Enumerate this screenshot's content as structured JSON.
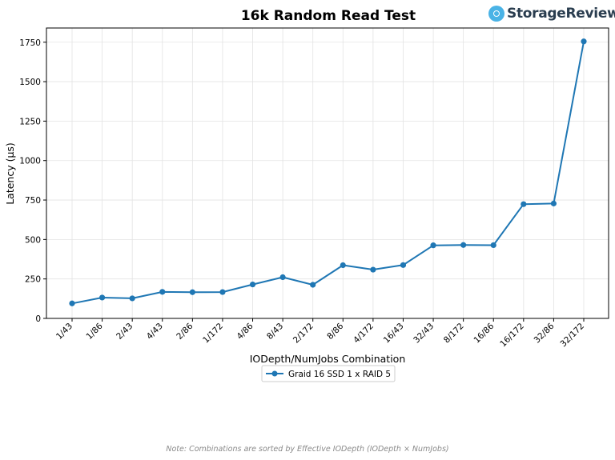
{
  "chart_data": {
    "type": "line",
    "title": "16k Random Read Test",
    "xlabel": "IODepth/NumJobs Combination",
    "ylabel": "Latency (µs)",
    "categories": [
      "1/43",
      "1/86",
      "2/43",
      "4/43",
      "2/86",
      "1/172",
      "4/86",
      "8/43",
      "2/172",
      "8/86",
      "4/172",
      "16/43",
      "32/43",
      "8/172",
      "16/86",
      "16/172",
      "32/86",
      "32/172"
    ],
    "series": [
      {
        "name": "Graid 16 SSD 1 x RAID 5",
        "values": [
          95,
          132,
          127,
          168,
          166,
          167,
          215,
          261,
          213,
          337,
          309,
          338,
          463,
          465,
          464,
          724,
          728,
          1755
        ],
        "color": "#1f77b4"
      }
    ],
    "ylim": [
      0,
      1840
    ],
    "yticks": [
      0,
      250,
      500,
      750,
      1000,
      1250,
      1500,
      1750
    ],
    "grid": true,
    "legend": "bottom-center",
    "note": "Note: Combinations are sorted by Effective IODepth (IODepth × NumJobs)"
  },
  "logo": {
    "text": "StorageReview"
  }
}
